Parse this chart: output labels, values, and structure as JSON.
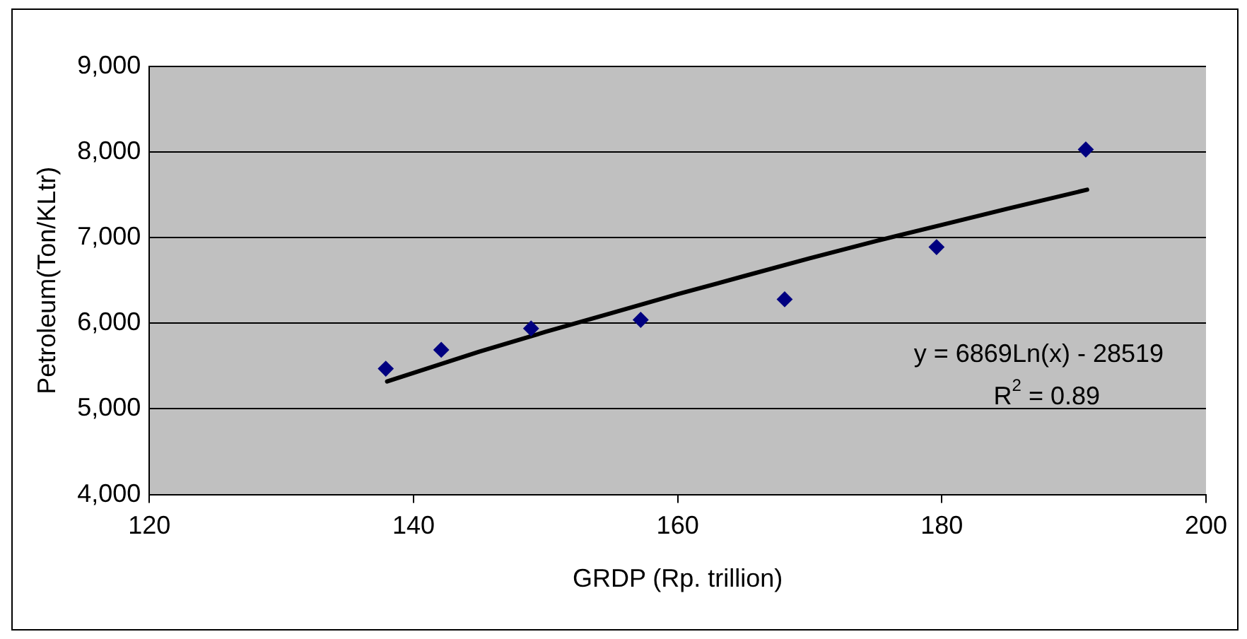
{
  "chart_data": {
    "type": "scatter",
    "xlabel": "GRDP (Rp. trillion)",
    "ylabel": "Petroleum(Ton/KLtr)",
    "xlim": [
      120,
      200
    ],
    "xticks": [
      120,
      140,
      160,
      180,
      200
    ],
    "ylim": [
      4000,
      9000
    ],
    "yticks": [
      {
        "value": 4000,
        "label": "4,000"
      },
      {
        "value": 5000,
        "label": "5,000"
      },
      {
        "value": 6000,
        "label": "6,000"
      },
      {
        "value": 7000,
        "label": "7,000"
      },
      {
        "value": 8000,
        "label": "8,000"
      },
      {
        "value": 9000,
        "label": "9,000"
      }
    ],
    "grid": "y",
    "legend": false,
    "series": [
      {
        "marker": "diamond",
        "color": "#000080",
        "x": [
          137.9,
          142.1,
          148.9,
          157.2,
          168.1,
          179.6,
          190.9
        ],
        "values": [
          5470,
          5690,
          5940,
          6040,
          6280,
          6890,
          8030
        ]
      },
      {
        "type": "line",
        "marker": "none",
        "color": "#000000",
        "x": [
          138,
          145,
          150,
          155,
          160,
          165,
          170,
          175,
          180,
          185,
          191
        ],
        "values": [
          5320,
          5670,
          5900,
          6120,
          6340,
          6550,
          6760,
          6960,
          7150,
          7340,
          7560
        ]
      }
    ],
    "annotations": [
      "y = 6869Ln(x) - 28519",
      "R$^{2}$ = 0.89"
    ]
  }
}
